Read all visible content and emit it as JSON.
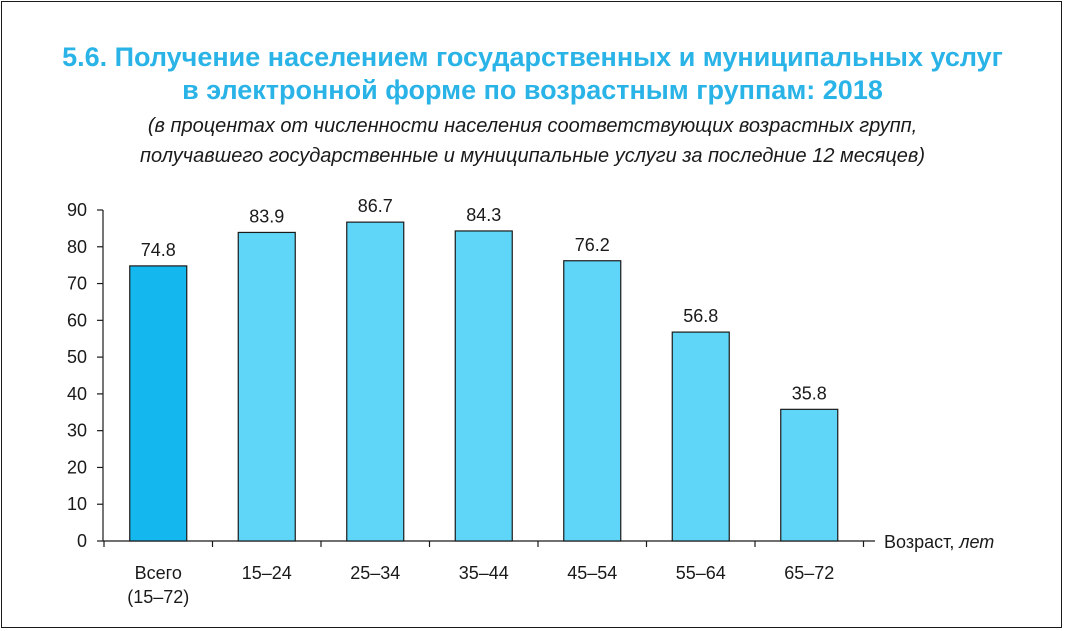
{
  "header": {
    "title_line1": "5.6. Получение населением государственных и муниципальных услуг",
    "title_line2": "в электронной форме по возрастным группам: 2018",
    "subtitle_line1": "(в процентах от численности населения соответствующих возрастных групп,",
    "subtitle_line2": "получавшего государственные и муниципальные услуги за последние 12 месяцев)"
  },
  "colors": {
    "title": "#29b3e6",
    "bar_total": "#14b7ee",
    "bar_group": "#5fd6f7",
    "bar_outline": "#1a1a1a",
    "text": "#1a1a1a"
  },
  "chart_data": {
    "type": "bar",
    "title": "5.6. Получение населением государственных и муниципальных услуг в электронной форме по возрастным группам: 2018",
    "subtitle": "(в процентах от численности населения соответствующих возрастных групп, получавшего государственные и муниципальные услуги за последние 12 месяцев)",
    "categories": [
      [
        "Всего",
        "(15–72)"
      ],
      [
        "15–24"
      ],
      [
        "25–34"
      ],
      [
        "35–44"
      ],
      [
        "45–54"
      ],
      [
        "55–64"
      ],
      [
        "65–72"
      ]
    ],
    "values": [
      74.8,
      83.9,
      86.7,
      84.3,
      76.2,
      56.8,
      35.8
    ],
    "value_labels": [
      "74.8",
      "83.9",
      "86.7",
      "84.3",
      "76.2",
      "56.8",
      "35.8"
    ],
    "highlight_index": 0,
    "xlabel": "Возраст,",
    "xlabel_unit": "лет",
    "ylabel": "",
    "ylim": [
      0,
      90
    ],
    "yticks": [
      0,
      10,
      20,
      30,
      40,
      50,
      60,
      70,
      80,
      90
    ],
    "grid": false,
    "legend": "none"
  }
}
